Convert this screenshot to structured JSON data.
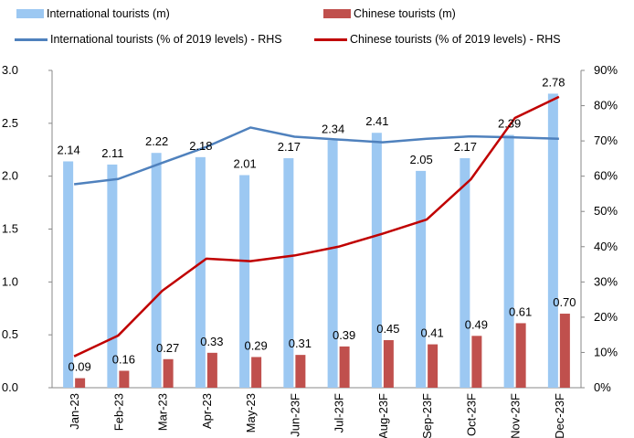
{
  "chart_data": {
    "type": "bar",
    "categories": [
      "Jan-23",
      "Feb-23",
      "Mar-23",
      "Apr-23",
      "May-23",
      "Jun-23F",
      "Jul-23F",
      "Aug-23F",
      "Sep-23F",
      "Oct-23F",
      "Nov-23F",
      "Dec-23F"
    ],
    "series": [
      {
        "name": "International tourists (m)",
        "type": "bar",
        "axis": "left",
        "color": "#9CC8F2",
        "values": [
          2.14,
          2.11,
          2.22,
          2.18,
          2.01,
          2.17,
          2.34,
          2.41,
          2.05,
          2.17,
          2.39,
          2.78
        ],
        "labels": [
          "2.14",
          "2.11",
          "2.22",
          "2.18",
          "2.01",
          "2.17",
          "2.34",
          "2.41",
          "2.05",
          "2.17",
          "2.39",
          "2.78"
        ]
      },
      {
        "name": "Chinese tourists (m)",
        "type": "bar",
        "axis": "left",
        "color": "#C0504D",
        "values": [
          0.09,
          0.16,
          0.27,
          0.33,
          0.29,
          0.31,
          0.39,
          0.45,
          0.41,
          0.49,
          0.61,
          0.7
        ],
        "labels": [
          "0.09",
          "0.16",
          "0.27",
          "0.33",
          "0.29",
          "0.31",
          "0.39",
          "0.45",
          "0.41",
          "0.49",
          "0.61",
          "0.70"
        ]
      },
      {
        "name": "International tourists (% of 2019 levels) - RHS",
        "type": "line",
        "axis": "right",
        "color": "#4F81BD",
        "values": [
          57.7,
          59.2,
          63.8,
          68.3,
          73.8,
          71.2,
          70.4,
          69.6,
          70.6,
          71.3,
          71.0,
          70.6
        ]
      },
      {
        "name": "Chinese tourists (% of 2019 levels) - RHS",
        "type": "line",
        "axis": "right",
        "color": "#C00000",
        "values": [
          8.9,
          14.8,
          27.5,
          36.6,
          35.9,
          37.5,
          40.0,
          43.7,
          47.7,
          59.1,
          76.5,
          82.5
        ]
      }
    ],
    "y_left": {
      "min": 0,
      "max": 3.0,
      "ticks": [
        "0.0",
        "0.5",
        "1.0",
        "1.5",
        "2.0",
        "2.5",
        "3.0"
      ]
    },
    "y_right": {
      "min": 0,
      "max": 90,
      "ticks": [
        "0%",
        "10%",
        "20%",
        "30%",
        "40%",
        "50%",
        "60%",
        "70%",
        "80%",
        "90%"
      ]
    },
    "grid": false,
    "legend": "top"
  }
}
